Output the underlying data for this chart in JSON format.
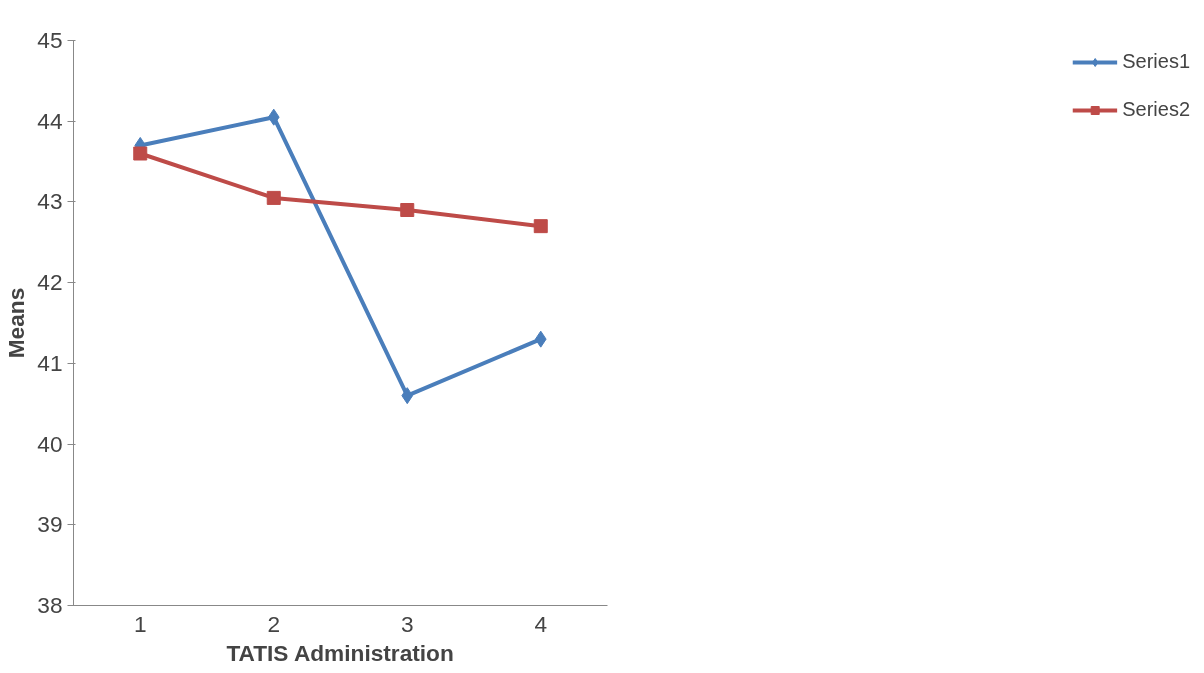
{
  "chart_data": {
    "type": "line",
    "xlabel": "TATIS Administration",
    "ylabel": "Means",
    "categories": [
      "1",
      "2",
      "3",
      "4"
    ],
    "series": [
      {
        "name": "Series1",
        "color": "#4a7ebb",
        "marker": "diamond",
        "values": [
          43.7,
          44.05,
          40.6,
          41.3
        ]
      },
      {
        "name": "Series2",
        "color": "#be4b48",
        "marker": "square",
        "values": [
          43.6,
          43.05,
          42.9,
          42.7
        ]
      }
    ],
    "ylim": [
      38,
      45
    ],
    "yticks": [
      38,
      39,
      40,
      41,
      42,
      43,
      44,
      45
    ],
    "grid": false,
    "legend": "right"
  }
}
